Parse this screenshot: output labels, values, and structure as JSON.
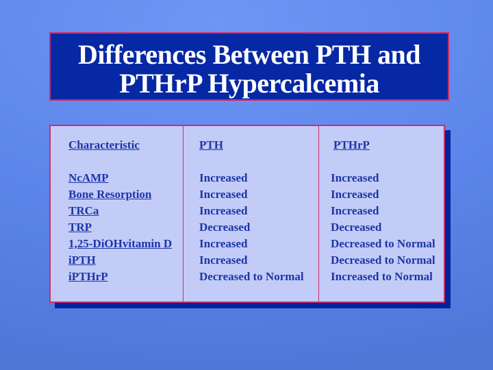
{
  "title": {
    "lines": [
      "Differences Between PTH and",
      "PTHrP Hypercalcemia"
    ]
  },
  "table": {
    "columns": [
      {
        "header": "Characteristic",
        "rows": [
          "NcAMP",
          "Bone Resorption",
          "TRCa",
          "TRP",
          "1,25-DiOHvitamin D",
          "iPTH",
          "iPTHrP"
        ]
      },
      {
        "header": "PTH",
        "rows": [
          "Increased",
          "Increased",
          "Increased",
          "Decreased",
          "Increased",
          "Increased",
          "Decreased to Normal"
        ]
      },
      {
        "header": "PTHrP",
        "rows": [
          "Increased",
          "Increased",
          "Increased",
          "Decreased",
          "Decreased to Normal",
          "Decreased to Normal",
          "Increased to Normal"
        ]
      }
    ]
  },
  "colors": {
    "background_light": "#6d96f6",
    "background_mid": "#5c85e9",
    "background_dark": "#4f77d8",
    "title_fill": "#0628a4",
    "title_text": "#ffffff",
    "panel_fill": "#c3cbf7",
    "border_accent": "#cb2d6c",
    "shadow_navy": "#00239b",
    "table_text": "#1c36a8"
  }
}
